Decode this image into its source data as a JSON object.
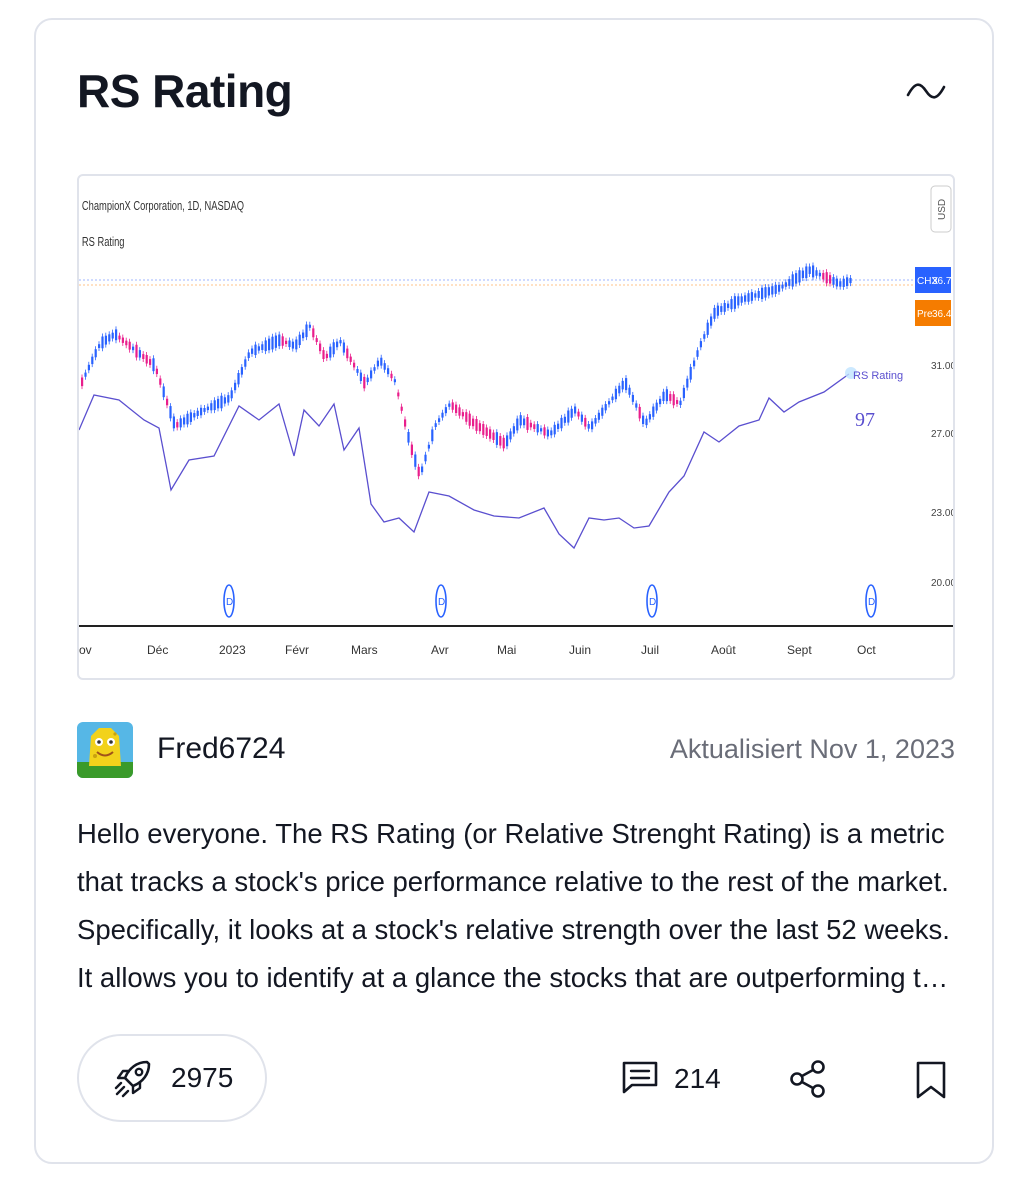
{
  "card": {
    "title": "RS Rating",
    "chart_toggle_icon": "wave-icon"
  },
  "chart_image": {
    "symbol_line": "ChampionX Corporation, 1D, NASDAQ",
    "indicator_label": "RS Rating",
    "currency": "USD",
    "last_price_tag": {
      "label": "CHX",
      "value": "36.70",
      "color": "#2962ff"
    },
    "premarket_tag": {
      "label": "Pre",
      "value": "36.42",
      "color": "#f57c00"
    },
    "y_ticks": [
      "31.00",
      "27.00",
      "23.00",
      "20.00"
    ],
    "x_ticks": [
      "ov",
      "Déc",
      "2023",
      "Févr",
      "Mars",
      "Avr",
      "Mai",
      "Juin",
      "Juil",
      "Août",
      "Sept",
      "Oct"
    ],
    "rs_line_label": "RS Rating",
    "rs_value": "97",
    "dividend_marker": "D",
    "colors": {
      "up_candle": "#2962ff",
      "down_candle": "#e91e8c",
      "rs_line": "#5a4fcf"
    }
  },
  "author": {
    "name": "Fred6724",
    "updated": "Aktualisiert Nov 1, 2023"
  },
  "description": "Hello everyone. The RS Rating (or Relative Strenght Rating) is a metric that tracks a stock's price performance relative to the rest of the market. Specifically, it looks at a stock's relative strength over the last 52 weeks. It allows you to identify at a glance the stocks that are outperforming the market.",
  "actions": {
    "boosts": "2975",
    "boost_icon": "rocket-icon",
    "comments": "214",
    "comment_icon": "comment-icon",
    "share_icon": "share-icon",
    "bookmark_icon": "bookmark-icon"
  }
}
